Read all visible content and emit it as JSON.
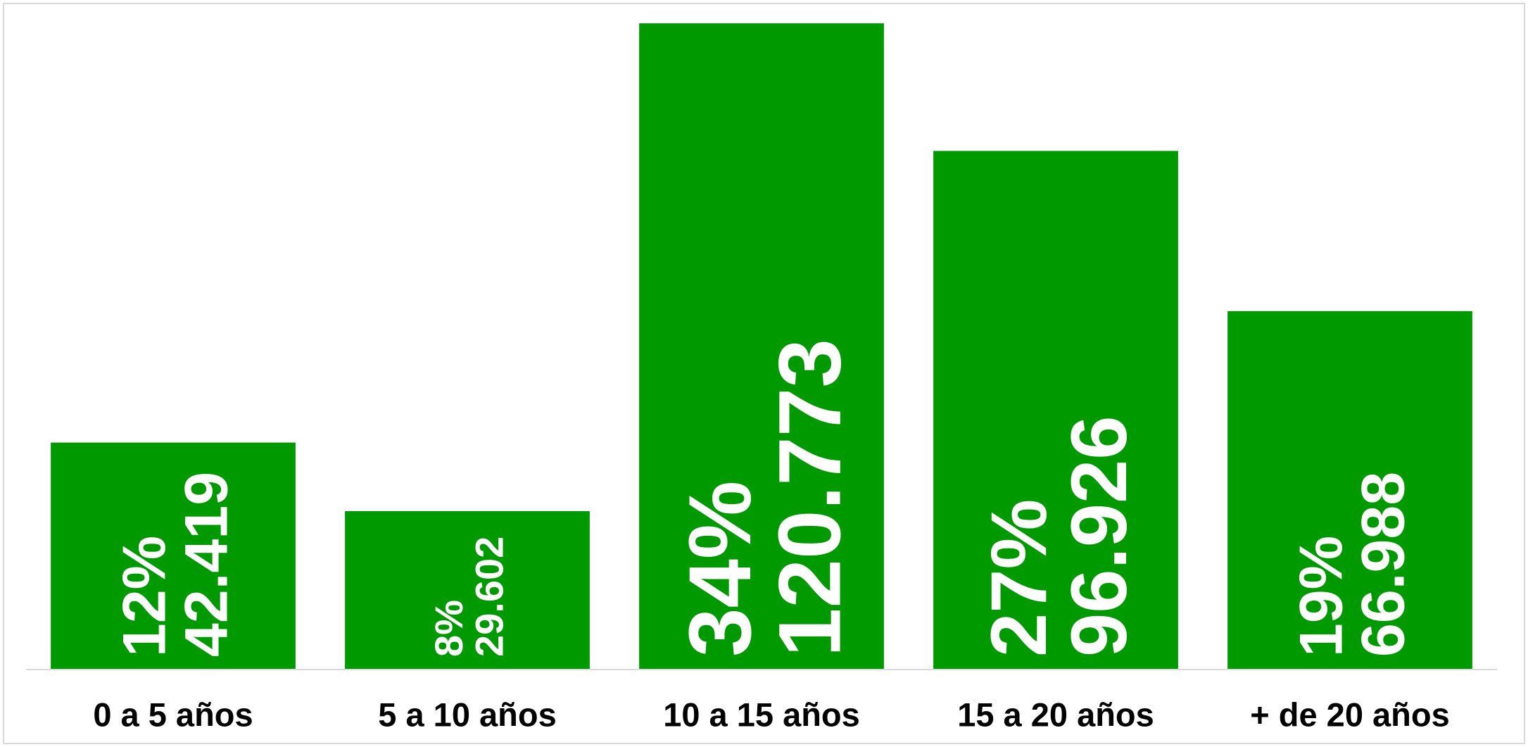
{
  "chart_data": {
    "type": "bar",
    "categories": [
      "0 a 5 años",
      "5 a 10 años",
      "10 a 15 años",
      "15 a 20 años",
      "+ de 20 años"
    ],
    "values": [
      42419,
      29602,
      120773,
      96926,
      66988
    ],
    "value_labels": [
      "42.419",
      "29.602",
      "120.773",
      "96.926",
      "66.988"
    ],
    "share_labels": [
      "12%",
      "8%",
      "34%",
      "27%",
      "19%"
    ],
    "color": "#009900",
    "ylim": [
      0,
      125000
    ]
  }
}
